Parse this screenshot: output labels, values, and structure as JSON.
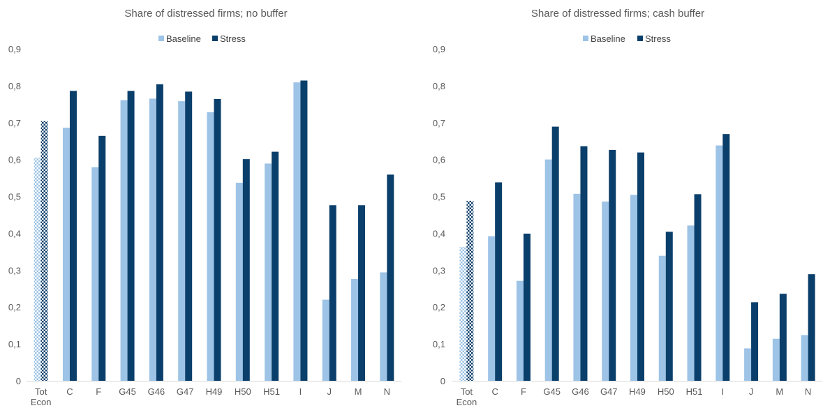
{
  "chart_data": [
    {
      "type": "bar",
      "title": "Share of distressed firms; no buffer",
      "xlabel": "",
      "ylabel": "",
      "ylim": [
        0,
        0.9
      ],
      "y_ticks": [
        "0",
        "0,1",
        "0,2",
        "0,3",
        "0,4",
        "0,5",
        "0,6",
        "0,7",
        "0,8",
        "0,9"
      ],
      "categories": [
        [
          "Tot",
          "Econ"
        ],
        [
          "C"
        ],
        [
          "F"
        ],
        [
          "G45"
        ],
        [
          "G46"
        ],
        [
          "G47"
        ],
        [
          "H49"
        ],
        [
          "H50"
        ],
        [
          "H51"
        ],
        [
          "I"
        ],
        [
          "J"
        ],
        [
          "M"
        ],
        [
          "N"
        ]
      ],
      "legend_position": "top-center",
      "grid": false,
      "first_category_pattern": "checkered",
      "series": [
        {
          "name": "Baseline",
          "color": "#9dc3e6",
          "values": [
            0.605,
            0.686,
            0.579,
            0.761,
            0.765,
            0.758,
            0.728,
            0.537,
            0.589,
            0.809,
            0.22,
            0.276,
            0.294
          ]
        },
        {
          "name": "Stress",
          "color": "#0b3f6b",
          "values": [
            0.704,
            0.786,
            0.664,
            0.786,
            0.804,
            0.784,
            0.764,
            0.601,
            0.621,
            0.814,
            0.476,
            0.476,
            0.559
          ]
        }
      ]
    },
    {
      "type": "bar",
      "title": "Share of distressed firms; cash buffer",
      "xlabel": "",
      "ylabel": "",
      "ylim": [
        0,
        0.9
      ],
      "y_ticks": [
        "0",
        "0,1",
        "0,2",
        "0,3",
        "0,4",
        "0,5",
        "0,6",
        "0,7",
        "0,8",
        "0,9"
      ],
      "categories": [
        [
          "Tot",
          "Econ"
        ],
        [
          "C"
        ],
        [
          "F"
        ],
        [
          "G45"
        ],
        [
          "G46"
        ],
        [
          "G47"
        ],
        [
          "H49"
        ],
        [
          "H50"
        ],
        [
          "H51"
        ],
        [
          "I"
        ],
        [
          "J"
        ],
        [
          "M"
        ],
        [
          "N"
        ]
      ],
      "legend_position": "top-center",
      "grid": false,
      "first_category_pattern": "checkered",
      "series": [
        {
          "name": "Baseline",
          "color": "#9dc3e6",
          "values": [
            0.363,
            0.392,
            0.271,
            0.6,
            0.507,
            0.486,
            0.504,
            0.339,
            0.421,
            0.638,
            0.088,
            0.114,
            0.124
          ]
        },
        {
          "name": "Stress",
          "color": "#0b3f6b",
          "values": [
            0.488,
            0.538,
            0.399,
            0.689,
            0.636,
            0.626,
            0.619,
            0.404,
            0.506,
            0.669,
            0.213,
            0.236,
            0.289
          ]
        }
      ]
    }
  ]
}
